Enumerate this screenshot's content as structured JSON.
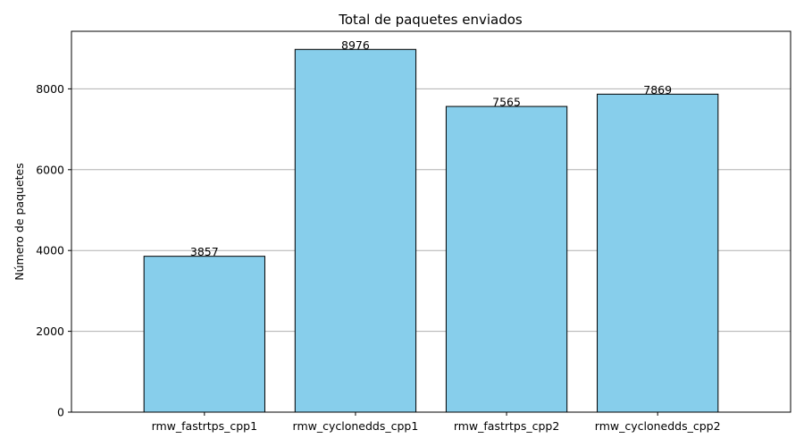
{
  "chart_data": {
    "type": "bar",
    "title": "Total de paquetes enviados",
    "xlabel": "",
    "ylabel": "Número de paquetes",
    "categories": [
      "rmw_fastrtps_cpp1",
      "rmw_cyclonedds_cpp1",
      "rmw_fastrtps_cpp2",
      "rmw_cyclonedds_cpp2"
    ],
    "values": [
      3857,
      8976,
      7565,
      7869
    ],
    "data_labels": [
      "3857",
      "8976",
      "7565",
      "7869"
    ],
    "ylim": [
      0,
      9424.8
    ],
    "yticks": [
      0,
      2000,
      4000,
      6000,
      8000
    ],
    "ytick_labels": [
      "0",
      "2000",
      "4000",
      "6000",
      "8000"
    ],
    "grid": "y-axis",
    "bar_color": "#87CEEB",
    "edge_color": "#000000",
    "grid_color": "#b0b0b0"
  }
}
